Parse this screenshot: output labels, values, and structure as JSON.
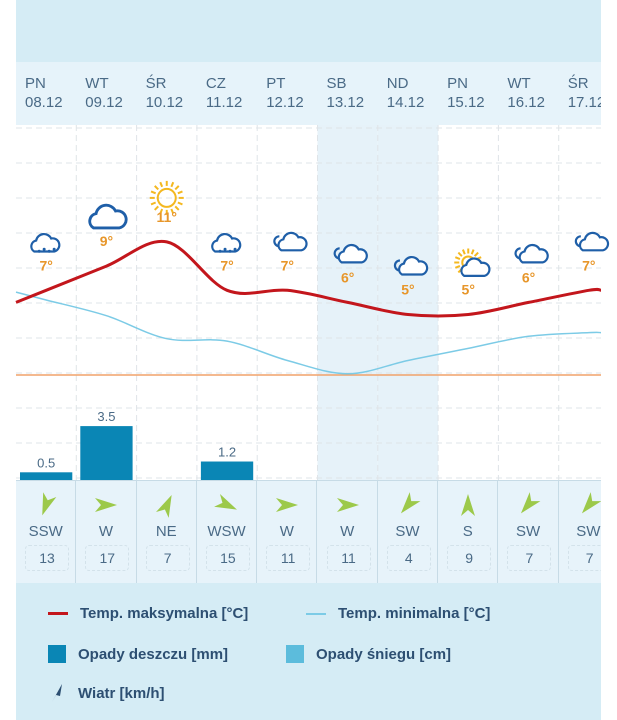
{
  "colors": {
    "max_line": "#c3161c",
    "min_line": "#7ccbe6",
    "rain": "#0a86b5",
    "snow": "#5cbcdc",
    "zero_line": "#f0a26a",
    "temp_label": "#e7962a",
    "wind_arrow": "#9cc94a"
  },
  "days": [
    {
      "dow": "PN",
      "date": "08.12",
      "icon": "rain-cloud-icon",
      "wind_dir": "SSW",
      "wind_speed": "13",
      "wind_rot": 200
    },
    {
      "dow": "WT",
      "date": "09.12",
      "icon": "cloud-icon",
      "wind_dir": "W",
      "wind_speed": "17",
      "wind_rot": 90
    },
    {
      "dow": "ŚR",
      "date": "10.12",
      "icon": "sun-icon",
      "wind_dir": "NE",
      "wind_speed": "7",
      "wind_rot": 25
    },
    {
      "dow": "CZ",
      "date": "11.12",
      "icon": "rain-cloud-icon",
      "wind_dir": "WSW",
      "wind_speed": "15",
      "wind_rot": 115
    },
    {
      "dow": "PT",
      "date": "12.12",
      "icon": "clouds-icon",
      "wind_dir": "W",
      "wind_speed": "11",
      "wind_rot": 90
    },
    {
      "dow": "SB",
      "date": "13.12",
      "icon": "clouds-icon",
      "wind_dir": "W",
      "wind_speed": "11",
      "wind_rot": 90
    },
    {
      "dow": "ND",
      "date": "14.12",
      "icon": "clouds-icon",
      "wind_dir": "SW",
      "wind_speed": "4",
      "wind_rot": -140
    },
    {
      "dow": "PN",
      "date": "15.12",
      "icon": "sun-cloud-icon",
      "wind_dir": "S",
      "wind_speed": "9",
      "wind_rot": 0
    },
    {
      "dow": "WT",
      "date": "16.12",
      "icon": "clouds-icon",
      "wind_dir": "SW",
      "wind_speed": "7",
      "wind_rot": -140
    },
    {
      "dow": "ŚR",
      "date": "17.12",
      "icon": "clouds-icon",
      "wind_dir": "SW",
      "wind_speed": "7",
      "wind_rot": -140
    }
  ],
  "chart_data": {
    "type": "line",
    "categories": [
      "08.12",
      "09.12",
      "10.12",
      "11.12",
      "12.12",
      "13.12",
      "14.12",
      "15.12",
      "16.12",
      "17.12"
    ],
    "series": [
      {
        "name": "Temp. maksymalna [°C]",
        "values": [
          7,
          9,
          11,
          7,
          7,
          6,
          5,
          5,
          6,
          7
        ],
        "labels": [
          "7°",
          "9°",
          "11°",
          "7°",
          "7°",
          "6°",
          "5°",
          "5°",
          "6°",
          "7°"
        ]
      },
      {
        "name": "Temp. minimalna [°C]",
        "values": [
          6.2,
          4.9,
          3.0,
          2.8,
          1.2,
          0.1,
          1.2,
          2.2,
          3.2,
          3.5
        ]
      },
      {
        "name": "Opady deszczu [mm]",
        "type": "bar",
        "values": [
          0.5,
          3.5,
          0,
          1.2,
          0,
          0,
          0,
          0,
          0,
          0
        ],
        "labels": [
          "0.5",
          "3.5",
          "",
          "1.2",
          "",
          "",
          "",
          "",
          "",
          ""
        ]
      },
      {
        "name": "Opady śniegu [cm]",
        "type": "bar",
        "values": [
          0,
          0,
          0,
          0,
          0,
          0,
          0,
          0,
          0,
          0
        ]
      }
    ],
    "zero_line": 0,
    "weekend_shaded": [
      "13.12",
      "14.12"
    ],
    "grid": true
  },
  "legend": {
    "max": "Temp. maksymalna [°C]",
    "min": "Temp. minimalna [°C]",
    "rain": "Opady deszczu [mm]",
    "snow": "Opady śniegu [cm]",
    "wind": "Wiatr [km/h]"
  }
}
